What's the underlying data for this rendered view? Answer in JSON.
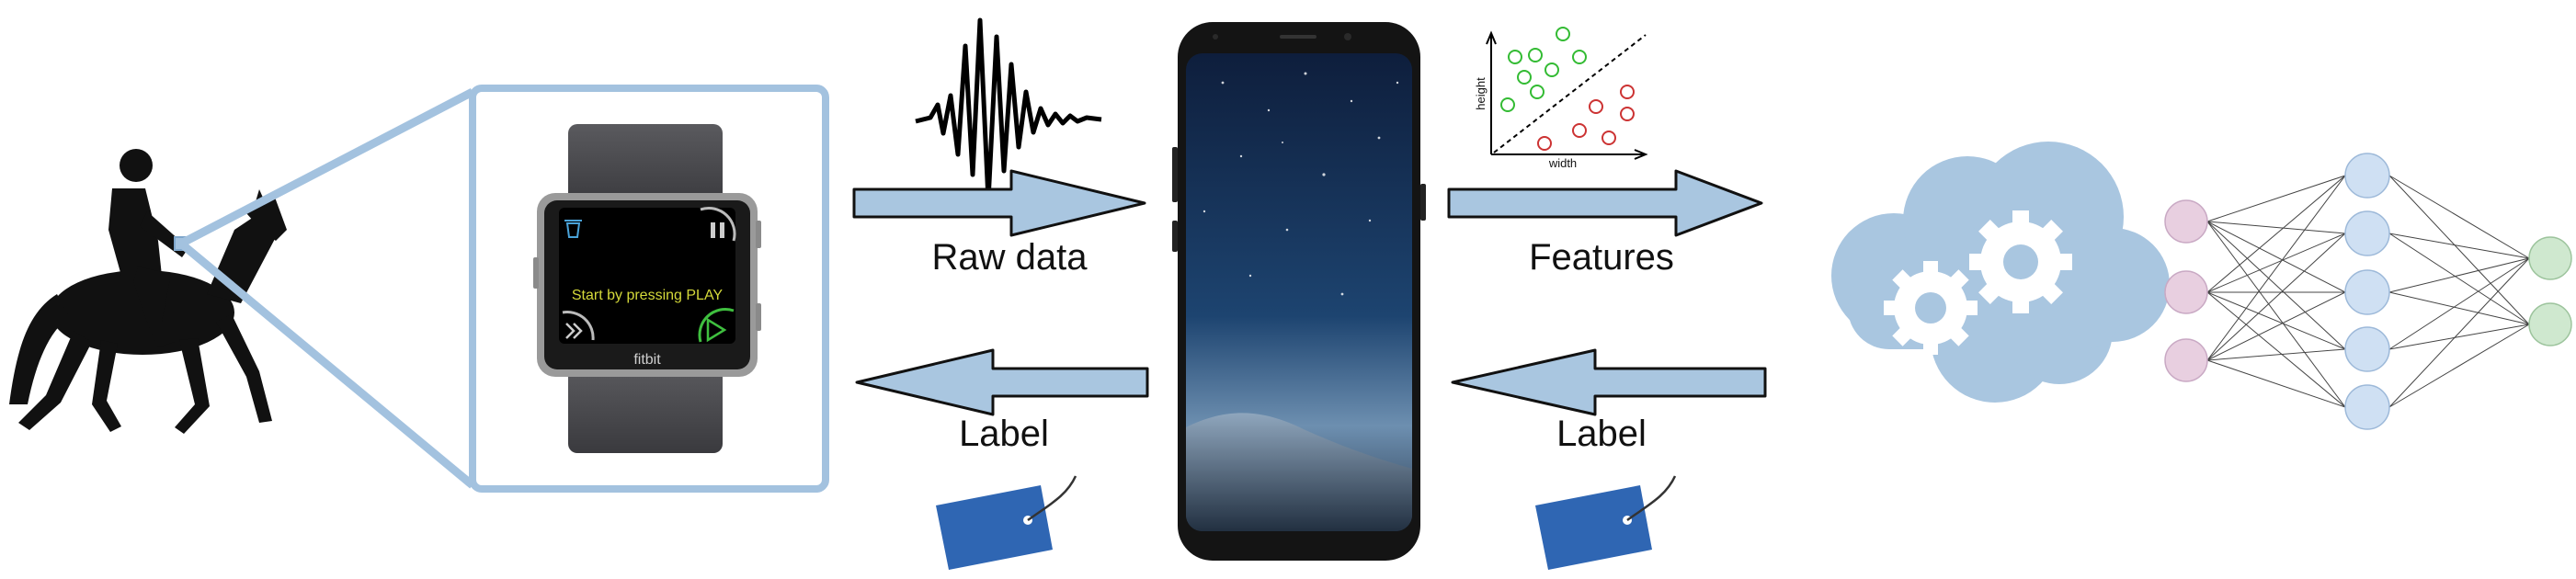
{
  "labels": {
    "raw_data": "Raw data",
    "features": "Features",
    "label_left": "Label",
    "label_right": "Label"
  },
  "watch": {
    "message": "Start by pressing PLAY",
    "brand": "fitbit"
  },
  "scatter": {
    "xlabel": "width",
    "ylabel": "height"
  },
  "colors": {
    "arrow_fill": "#a9c6e0",
    "zoom_frame": "#a3c2df",
    "cloud": "#a9c6e0",
    "tag": "#2f66b3",
    "nn_input": "#e8cfe0",
    "nn_hidden": "#cfe0f3",
    "nn_output": "#cfe8cf",
    "scatter_green": "#33bb33",
    "scatter_red": "#cc3333"
  }
}
